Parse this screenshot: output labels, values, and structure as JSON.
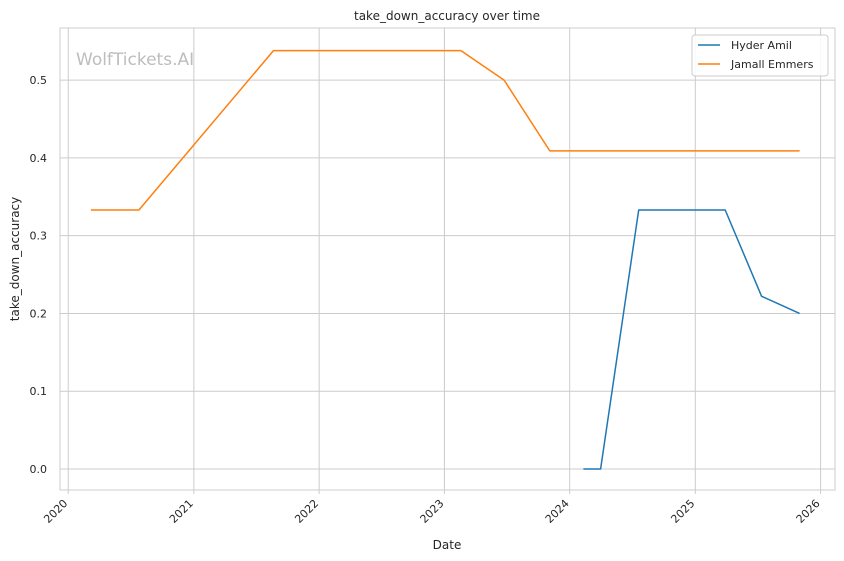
{
  "chart_data": {
    "type": "line",
    "title": "take_down_accuracy over time",
    "xlabel": "Date",
    "ylabel": "take_down_accuracy",
    "watermark": "WolfTickets.AI",
    "xlim": [
      "2019-12-08",
      "2026-02-12"
    ],
    "ylim": [
      -0.027,
      0.567
    ],
    "x_ticks": [
      "2020-01-01",
      "2021-01-01",
      "2022-01-01",
      "2023-01-01",
      "2024-01-01",
      "2025-01-01",
      "2026-01-01"
    ],
    "x_tick_labels": [
      "2020",
      "2021",
      "2022",
      "2023",
      "2024",
      "2025",
      "2026"
    ],
    "y_ticks": [
      0.0,
      0.1,
      0.2,
      0.3,
      0.4,
      0.5
    ],
    "y_tick_labels": [
      "0.0",
      "0.1",
      "0.2",
      "0.3",
      "0.4",
      "0.5"
    ],
    "grid": true,
    "legend_position": "top-right",
    "series": [
      {
        "name": "Hyder Amil",
        "color": "#1f77b4",
        "points": [
          {
            "x": "2024-02-10",
            "y": 0.0
          },
          {
            "x": "2024-03-31",
            "y": 0.0
          },
          {
            "x": "2024-07-20",
            "y": 0.333
          },
          {
            "x": "2025-03-29",
            "y": 0.333
          },
          {
            "x": "2025-07-13",
            "y": 0.222
          },
          {
            "x": "2025-11-01",
            "y": 0.2
          }
        ]
      },
      {
        "name": "Jamall Emmers",
        "color": "#ff7f0e",
        "points": [
          {
            "x": "2020-03-07",
            "y": 0.333
          },
          {
            "x": "2020-07-25",
            "y": 0.333
          },
          {
            "x": "2021-08-21",
            "y": 0.538
          },
          {
            "x": "2023-02-18",
            "y": 0.538
          },
          {
            "x": "2023-06-24",
            "y": 0.5
          },
          {
            "x": "2023-11-04",
            "y": 0.409
          },
          {
            "x": "2025-11-01",
            "y": 0.409
          }
        ]
      }
    ]
  }
}
